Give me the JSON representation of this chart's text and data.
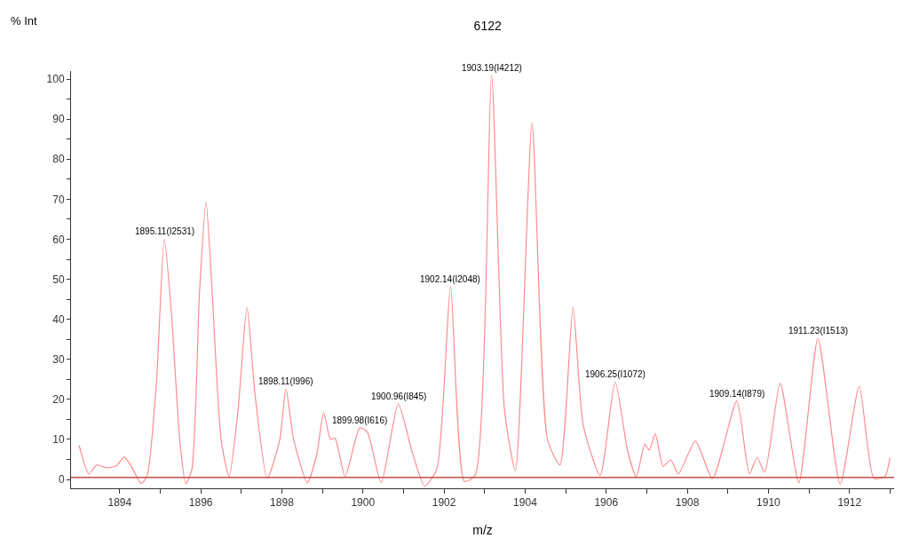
{
  "chart_data": {
    "type": "line",
    "title": "6122",
    "xlabel": "m/z",
    "ylabel": "% Int",
    "xlim": [
      1892.8,
      1913.1
    ],
    "xticks": [
      1894,
      {
        "value": 1895,
        "label": null
      },
      1896,
      {
        "value": 1897,
        "label": null
      },
      1898,
      {
        "value": 1899,
        "label": null
      },
      1900,
      {
        "value": 1901,
        "label": null
      },
      1902,
      {
        "value": 1903,
        "label": null
      },
      1904,
      {
        "value": 1905,
        "label": null
      },
      1906,
      {
        "value": 1907,
        "label": null
      },
      1908,
      {
        "value": 1909,
        "label": null
      },
      1910,
      {
        "value": 1911,
        "label": null
      },
      1912,
      {
        "value": 1913,
        "label": null
      }
    ],
    "ylim": [
      -2.2,
      102
    ],
    "yticks": [
      0,
      {
        "value": 5,
        "label": null
      },
      10,
      {
        "value": 15,
        "label": null
      },
      20,
      {
        "value": 25,
        "label": null
      },
      30,
      {
        "value": 35,
        "label": null
      },
      40,
      {
        "value": 45,
        "label": null
      },
      50,
      {
        "value": 55,
        "label": null
      },
      60,
      {
        "value": 65,
        "label": null
      },
      70,
      {
        "value": 75,
        "label": null
      },
      80,
      {
        "value": 85,
        "label": null
      },
      90,
      {
        "value": 95,
        "label": null
      },
      100
    ],
    "grid": false,
    "marker": "none",
    "line_style": "solid",
    "x": [
      1893.0,
      1893.24,
      1893.43,
      1893.7,
      1893.92,
      1894.11,
      1894.27,
      1894.53,
      1894.68,
      1894.91,
      1895.1,
      1895.29,
      1895.48,
      1895.63,
      1895.78,
      1895.97,
      1896.13,
      1896.28,
      1896.5,
      1896.7,
      1896.92,
      1897.14,
      1897.34,
      1897.64,
      1897.95,
      1898.1,
      1898.29,
      1898.63,
      1898.86,
      1899.03,
      1899.2,
      1899.31,
      1899.56,
      1899.92,
      1900.11,
      1900.45,
      1900.87,
      1901.21,
      1901.52,
      1901.82,
      1902.16,
      1902.5,
      1902.77,
      1903.17,
      1903.49,
      1903.76,
      1904.17,
      1904.55,
      1904.86,
      1905.18,
      1905.43,
      1905.85,
      1906.22,
      1906.53,
      1906.74,
      1906.95,
      1907.06,
      1907.21,
      1907.4,
      1907.59,
      1907.78,
      1908.2,
      1908.62,
      1909.22,
      1909.53,
      1909.72,
      1909.91,
      1910.29,
      1910.75,
      1911.22,
      1911.77,
      1912.24,
      1912.6,
      1912.87,
      1913.0
    ],
    "series": [
      {
        "color": "#ff8c8c",
        "values": [
          8.5,
          1.4,
          3.6,
          2.9,
          3.4,
          5.6,
          3.6,
          -1.0,
          1.1,
          24.8,
          60.1,
          39.6,
          10,
          -1.0,
          2.5,
          47,
          69.3,
          47,
          10,
          0.7,
          17.4,
          43,
          21,
          0.3,
          10,
          22.6,
          10,
          -0.8,
          6.2,
          16.6,
          10,
          10.3,
          0.7,
          12.9,
          11.8,
          -0.8,
          18.9,
          7,
          -1.6,
          2.5,
          48.2,
          -0.5,
          1.1,
          101,
          17.4,
          2.2,
          89,
          10,
          3.6,
          43,
          13.7,
          1,
          24.4,
          7,
          0.7,
          8.8,
          7.3,
          11.4,
          3.3,
          4.9,
          1.4,
          9.6,
          0.2,
          19.6,
          1.4,
          5.5,
          1.8,
          24,
          -0.8,
          35.2,
          -1.2,
          23.3,
          0.3,
          0.7,
          5.5
        ]
      }
    ],
    "ref_lines": [
      {
        "axis": "y",
        "value": 0.5,
        "color": "#c0504d",
        "line_style": "solid"
      }
    ],
    "annotations": [
      {
        "text": "1895.11(I2531)",
        "x": 1895.1,
        "y": 60.1
      },
      {
        "text": "1898.11(I996)",
        "x": 1898.1,
        "y": 22.6
      },
      {
        "text": "1899.98(I616)",
        "x": 1899.92,
        "y": 12.9
      },
      {
        "text": "1900.96(I845)",
        "x": 1900.87,
        "y": 18.9
      },
      {
        "text": "1902.14(I2048)",
        "x": 1902.16,
        "y": 48.2
      },
      {
        "text": "1903.19(I4212)",
        "x": 1903.17,
        "y": 101
      },
      {
        "text": "1906.25(I1072)",
        "x": 1906.22,
        "y": 24.4
      },
      {
        "text": "1909.14(I879)",
        "x": 1909.22,
        "y": 19.6
      },
      {
        "text": "1911.23(I1513)",
        "x": 1911.22,
        "y": 35.2
      }
    ]
  }
}
